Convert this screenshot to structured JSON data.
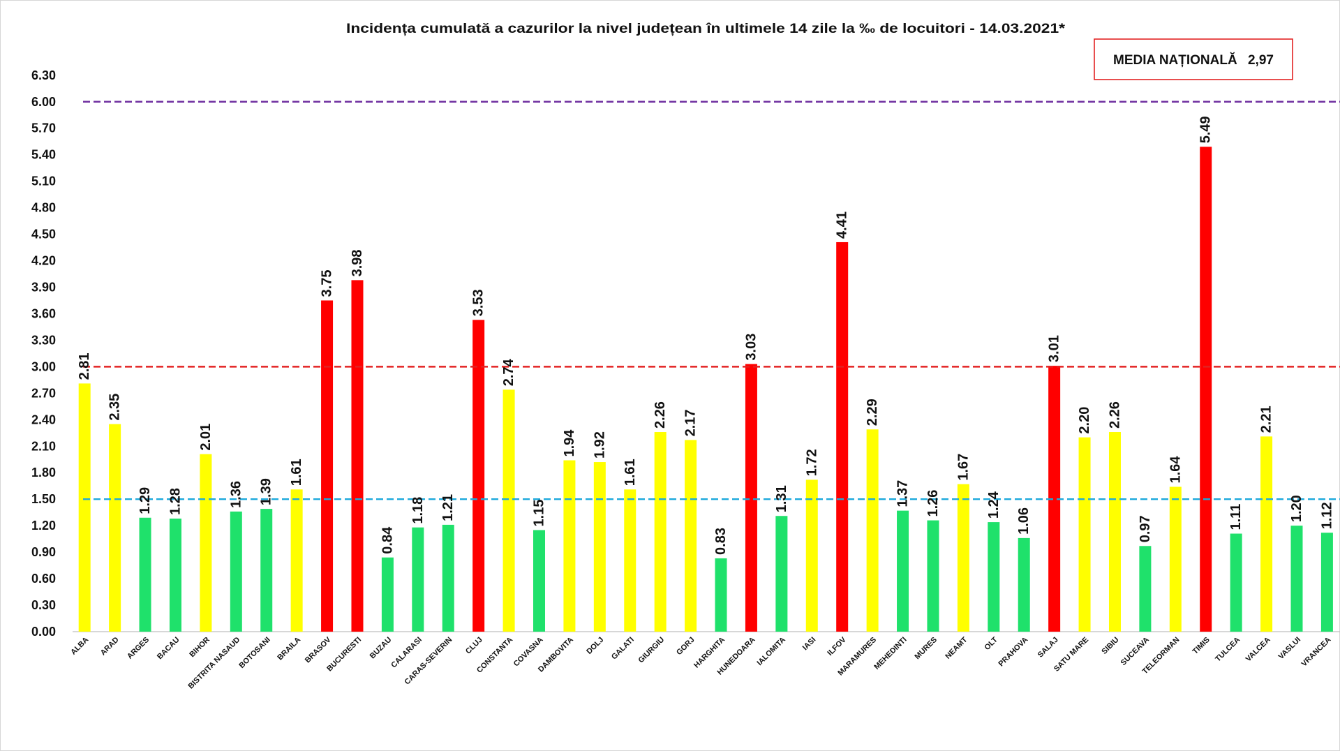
{
  "chart_data": {
    "type": "bar",
    "title": "Incidența cumulată a cazurilor la nivel județean în ultimele 14 zile la ‰ de locuitori - 14.03.2021*",
    "xlabel": "",
    "ylabel": "",
    "ylim": [
      0,
      6.3
    ],
    "grid": false,
    "legend": "none",
    "ytick_labels": [
      "0.00",
      "0.30",
      "0.60",
      "0.90",
      "1.20",
      "1.50",
      "1.80",
      "2.10",
      "2.40",
      "2.70",
      "3.00",
      "3.30",
      "3.60",
      "3.90",
      "4.20",
      "4.50",
      "4.80",
      "5.10",
      "5.40",
      "5.70",
      "6.00",
      "6.30"
    ],
    "categories": [
      "ALBA",
      "ARAD",
      "ARGES",
      "BACAU",
      "BIHOR",
      "BISTRITA NASAUD",
      "BOTOSANI",
      "BRAILA",
      "BRASOV",
      "BUCURESTI",
      "BUZAU",
      "CALARASI",
      "CARAS-SEVERIN",
      "CLUJ",
      "CONSTANTA",
      "COVASNA",
      "DAMBOVITA",
      "DOLJ",
      "GALATI",
      "GIURGIU",
      "GORJ",
      "HARGHITA",
      "HUNEDOARA",
      "IALOMITA",
      "IASI",
      "ILFOV",
      "MARAMURES",
      "MEHEDINTI",
      "MURES",
      "NEAMT",
      "OLT",
      "PRAHOVA",
      "SALAJ",
      "SATU MARE",
      "SIBIU",
      "SUCEAVA",
      "TELEORMAN",
      "TIMIS",
      "TULCEA",
      "VALCEA",
      "VASLUI",
      "VRANCEA"
    ],
    "values": [
      2.81,
      2.35,
      1.29,
      1.28,
      2.01,
      1.36,
      1.39,
      1.61,
      3.75,
      3.98,
      0.84,
      1.18,
      1.21,
      3.53,
      2.74,
      1.15,
      1.94,
      1.92,
      1.61,
      2.26,
      2.17,
      0.83,
      3.03,
      1.31,
      1.72,
      4.41,
      2.29,
      1.37,
      1.26,
      1.67,
      1.24,
      1.06,
      3.01,
      2.2,
      2.26,
      0.97,
      1.64,
      5.49,
      1.11,
      2.21,
      1.2,
      1.12
    ],
    "value_labels": [
      "2.81",
      "2.35",
      "1.29",
      "1.28",
      "2.01",
      "1.36",
      "1.39",
      "1.61",
      "3.75",
      "3.98",
      "0.84",
      "1.18",
      "1.21",
      "3.53",
      "2.74",
      "1.15",
      "1.94",
      "1.92",
      "1.61",
      "2.26",
      "2.17",
      "0.83",
      "3.03",
      "1.31",
      "1.72",
      "4.41",
      "2.29",
      "1.37",
      "1.26",
      "1.67",
      "1.24",
      "1.06",
      "3.01",
      "2.20",
      "2.26",
      "0.97",
      "1.64",
      "5.49",
      "1.11",
      "2.21",
      "1.20",
      "1.12"
    ],
    "bar_colors": [
      "#FFFF00",
      "#FFFF00",
      "#1FE16B",
      "#1FE16B",
      "#FFFF00",
      "#1FE16B",
      "#1FE16B",
      "#FFFF00",
      "#FF0000",
      "#FF0000",
      "#1FE16B",
      "#1FE16B",
      "#1FE16B",
      "#FF0000",
      "#FFFF00",
      "#1FE16B",
      "#FFFF00",
      "#FFFF00",
      "#FFFF00",
      "#FFFF00",
      "#FFFF00",
      "#1FE16B",
      "#FF0000",
      "#1FE16B",
      "#FFFF00",
      "#FF0000",
      "#FFFF00",
      "#1FE16B",
      "#1FE16B",
      "#FFFF00",
      "#1FE16B",
      "#1FE16B",
      "#FF0000",
      "#FFFF00",
      "#FFFF00",
      "#1FE16B",
      "#FFFF00",
      "#FF0000",
      "#1FE16B",
      "#FFFF00",
      "#1FE16B",
      "#1FE16B"
    ],
    "reference_lines": [
      {
        "value": 6.0,
        "color": "#7030A0",
        "style": "dashed"
      },
      {
        "value": 3.0,
        "color": "#E32222",
        "style": "dashed"
      },
      {
        "value": 1.5,
        "color": "#1DA9DC",
        "style": "dashed"
      }
    ]
  },
  "annotation": {
    "label": "MEDIA NAȚIONALĂ",
    "value": "2,97",
    "border_color": "#E32222"
  }
}
